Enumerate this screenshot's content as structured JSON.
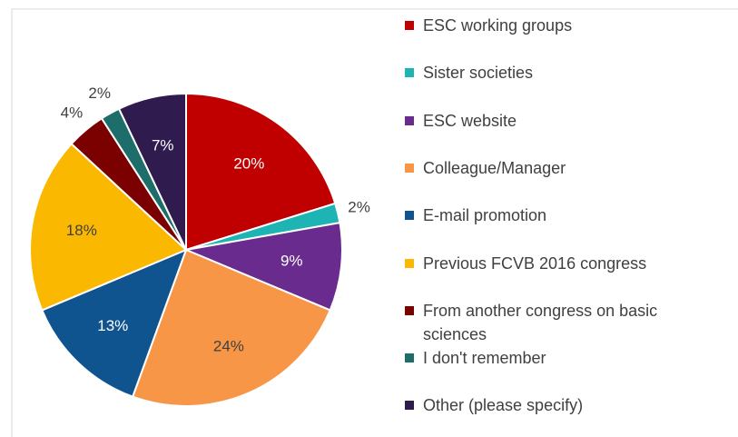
{
  "chart_data": {
    "type": "pie",
    "categories": [
      "ESC working groups",
      "Sister societies",
      "ESC website",
      "Colleague/Manager",
      "E-mail promotion",
      "Previous FCVB 2016 congress",
      "From another congress on basic sciences",
      "I don't remember",
      "Other (please specify)"
    ],
    "values": [
      20,
      2,
      9,
      24,
      13,
      18,
      4,
      2,
      7
    ],
    "value_labels": [
      "20%",
      "2%",
      "9%",
      "24%",
      "13%",
      "18%",
      "4%",
      "2%",
      "7%"
    ],
    "colors": [
      "#c00000",
      "#1fb4b4",
      "#6a2b8e",
      "#f79646",
      "#0f548f",
      "#fbb800",
      "#7b0000",
      "#1d6d6b",
      "#2f1b4e"
    ],
    "legend": "right"
  }
}
